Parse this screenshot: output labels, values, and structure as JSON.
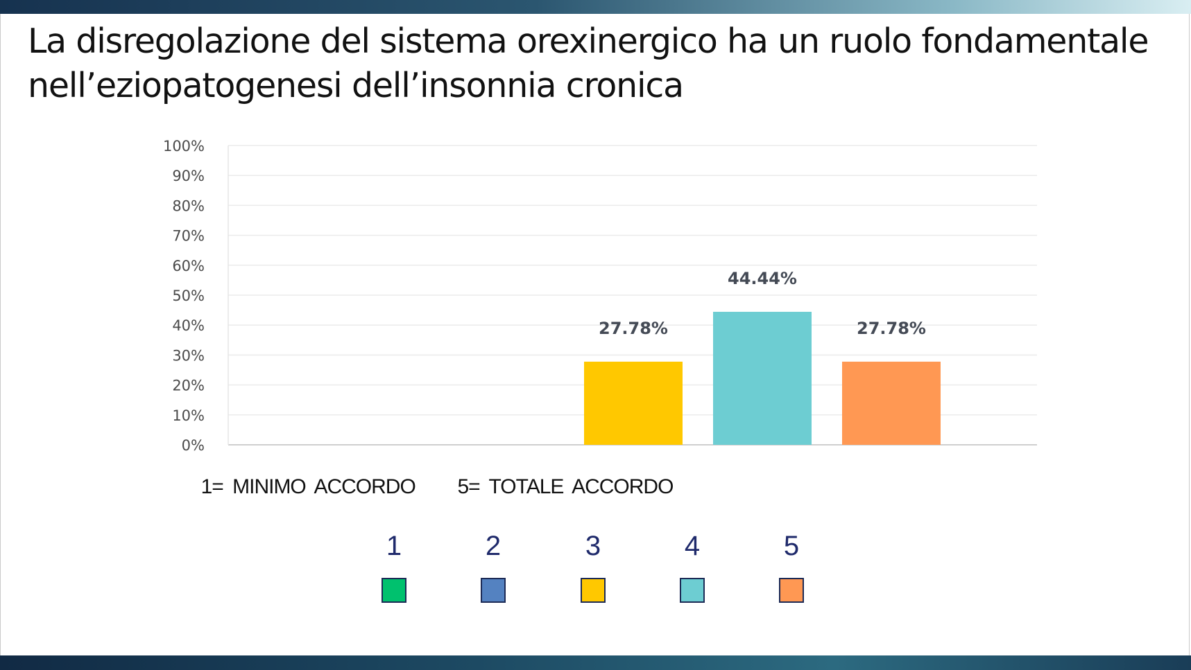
{
  "slide": {
    "title": "La disregolazione del sistema orexinergico ha un ruolo fondamentale nell’eziopatogenesi dell’insonnia cronica",
    "scale_min_label": "1= MINIMO ACCORDO",
    "scale_max_label": "5= TOTALE ACCORDO"
  },
  "chart_data": {
    "type": "bar",
    "categories": [
      "1",
      "2",
      "3",
      "4",
      "5"
    ],
    "values": [
      0,
      0,
      27.78,
      44.44,
      27.78
    ],
    "value_labels": [
      "",
      "",
      "27.78%",
      "44.44%",
      "27.78%"
    ],
    "colors": [
      "#00c16e",
      "#5482c1",
      "#ffc800",
      "#6dcdd2",
      "#ff9853"
    ],
    "yticks": [
      "0%",
      "10%",
      "20%",
      "30%",
      "40%",
      "50%",
      "60%",
      "70%",
      "80%",
      "90%",
      "100%"
    ],
    "ylim": [
      0,
      100
    ],
    "grid": true,
    "legend_position": "bottom"
  }
}
